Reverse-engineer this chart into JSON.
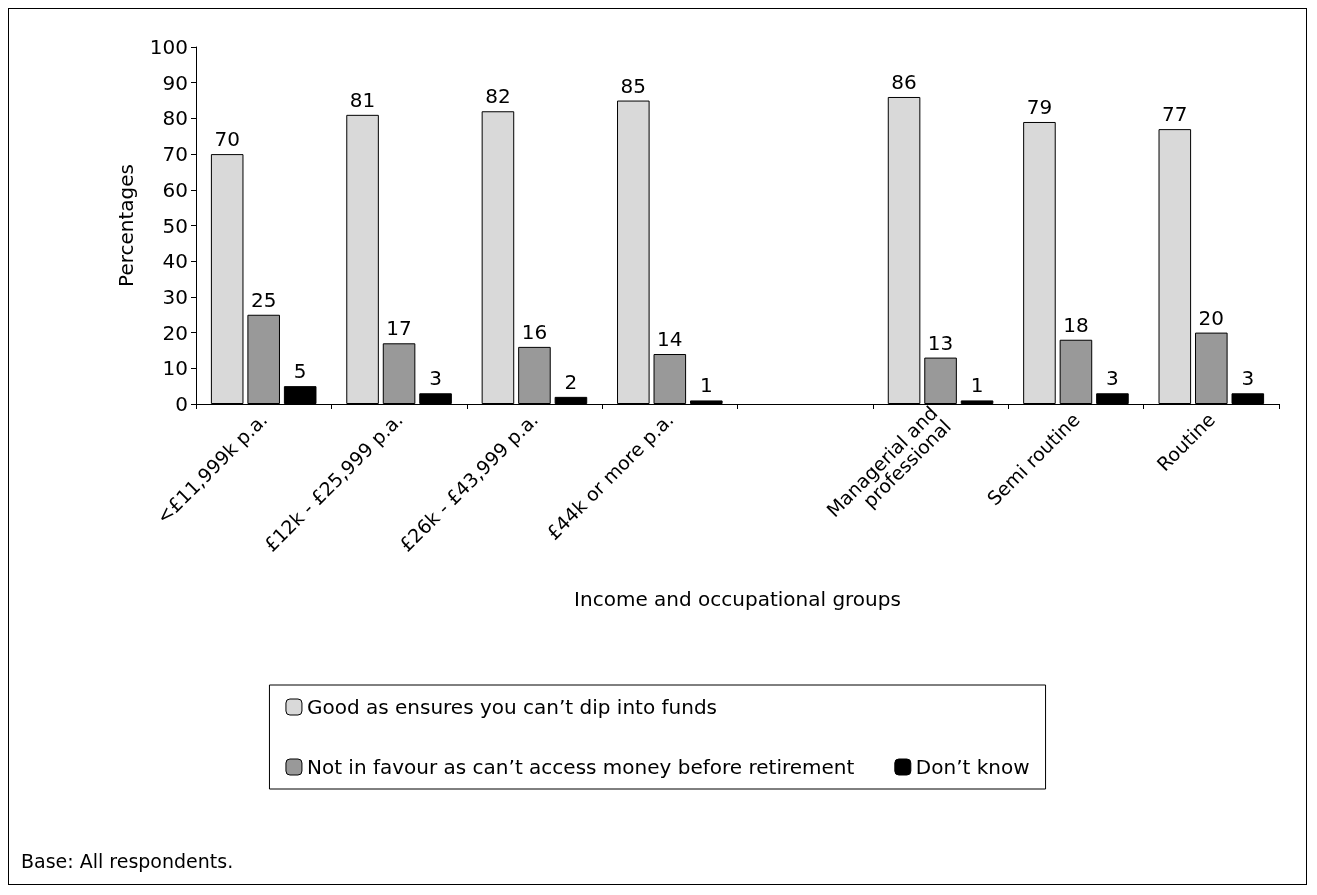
{
  "chart_data": {
    "type": "bar",
    "xlabel": "Income and occupational groups",
    "ylabel": "Percentages",
    "categories": [
      "<£11,999k p.a.",
      "£12k - £25,999 p.a.",
      "£26k - £43,999 p.a.",
      "£44k or more p.a.",
      null,
      "Managerial and professional",
      "Semi routine",
      "Routine"
    ],
    "series": [
      {
        "name": "Good as ensures you can’t dip into funds",
        "color": "#d9d9d9",
        "values": [
          70,
          81,
          82,
          85,
          null,
          86,
          79,
          77
        ]
      },
      {
        "name": "Not in favour as can’t access money before retirement",
        "color": "#999999",
        "values": [
          25,
          17,
          16,
          14,
          null,
          13,
          18,
          20
        ]
      },
      {
        "name": "Don’t know",
        "color": "#000000",
        "values": [
          5,
          3,
          2,
          1,
          null,
          1,
          3,
          3
        ]
      }
    ],
    "ylim": [
      0,
      100
    ],
    "yticks": [
      0,
      10,
      20,
      30,
      40,
      50,
      60,
      70,
      80,
      90,
      100
    ],
    "data_labels": true,
    "grid": false,
    "legend": "bottom",
    "annotations": [
      "Base: All respondents."
    ]
  }
}
